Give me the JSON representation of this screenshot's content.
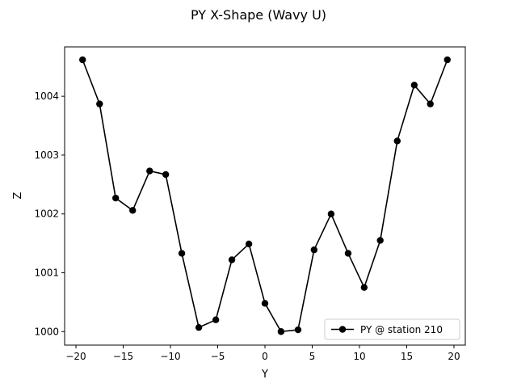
{
  "chart_data": {
    "type": "line",
    "title": "PY X-Shape (Wavy U)",
    "xlabel": "Y",
    "ylabel": "Z",
    "xlim": [
      -21.2,
      21.2
    ],
    "ylim": [
      999.77,
      1004.84
    ],
    "xticks": [
      -20,
      -15,
      -10,
      -5,
      0,
      5,
      10,
      15,
      20
    ],
    "xtick_labels": [
      "−20",
      "−15",
      "−10",
      "−5",
      "0",
      "5",
      "10",
      "15",
      "20"
    ],
    "yticks": [
      1000,
      1001,
      1002,
      1003,
      1004
    ],
    "ytick_labels": [
      "1000",
      "1001",
      "1002",
      "1003",
      "1004"
    ],
    "grid": false,
    "legend_position": "lower right",
    "series": [
      {
        "name": "PY @ station 210",
        "color": "#000000",
        "marker": "circle",
        "x": [
          -19.3,
          -17.5,
          -15.8,
          -14.0,
          -12.2,
          -10.5,
          -8.8,
          -7.0,
          -5.2,
          -3.5,
          -1.7,
          0.0,
          1.7,
          3.5,
          5.2,
          7.0,
          8.8,
          10.5,
          12.2,
          14.0,
          15.8,
          17.5,
          19.3
        ],
        "y": [
          1004.62,
          1003.87,
          1002.27,
          1002.06,
          1002.73,
          1002.67,
          1001.33,
          1000.07,
          1000.2,
          1001.22,
          1001.49,
          1000.48,
          1000.0,
          1000.03,
          1001.39,
          1002.0,
          1001.33,
          1000.75,
          1001.55,
          1003.24,
          1004.19,
          1003.87,
          1004.62
        ]
      }
    ]
  }
}
